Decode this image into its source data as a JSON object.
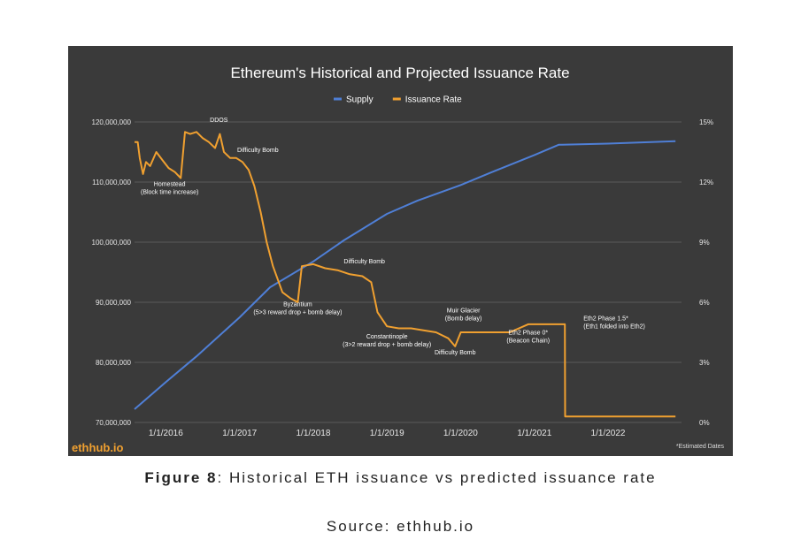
{
  "chart_data": {
    "type": "line",
    "title": "Ethereum's Historical and Projected Issuance Rate",
    "legend_position": "top-center",
    "grid": true,
    "x_range": [
      "2015-07-30",
      "2022-12-31"
    ],
    "x_ticks": [
      {
        "date": "2016-01-01",
        "label": "1/1/2016"
      },
      {
        "date": "2017-01-01",
        "label": "1/1/2017"
      },
      {
        "date": "2018-01-01",
        "label": "1/1/2018"
      },
      {
        "date": "2019-01-01",
        "label": "1/1/2019"
      },
      {
        "date": "2020-01-01",
        "label": "1/1/2020"
      },
      {
        "date": "2021-01-01",
        "label": "1/1/2021"
      },
      {
        "date": "2022-01-01",
        "label": "1/1/2022"
      }
    ],
    "y_left": {
      "range": [
        70000000,
        120000000
      ],
      "ticks": [
        {
          "value": 70000000,
          "label": "70,000,000"
        },
        {
          "value": 80000000,
          "label": "80,000,000"
        },
        {
          "value": 90000000,
          "label": "90,000,000"
        },
        {
          "value": 100000000,
          "label": "100,000,000"
        },
        {
          "value": 110000000,
          "label": "110,000,000"
        },
        {
          "value": 120000000,
          "label": "120,000,000"
        }
      ]
    },
    "y_right": {
      "range": [
        0,
        15
      ],
      "ticks": [
        {
          "value": 0,
          "label": "0%"
        },
        {
          "value": 3,
          "label": "3%"
        },
        {
          "value": 6,
          "label": "6%"
        },
        {
          "value": 9,
          "label": "9%"
        },
        {
          "value": 12,
          "label": "12%"
        },
        {
          "value": 15,
          "label": "15%"
        }
      ]
    },
    "series": [
      {
        "name": "Supply",
        "axis": "left",
        "color": "#4f7fd6",
        "points": [
          [
            "2015-07-30",
            72200000
          ],
          [
            "2016-01-01",
            76700000
          ],
          [
            "2016-06-01",
            81000000
          ],
          [
            "2017-01-01",
            87500000
          ],
          [
            "2017-06-01",
            92500000
          ],
          [
            "2018-01-01",
            96800000
          ],
          [
            "2018-06-01",
            100300000
          ],
          [
            "2019-01-01",
            104700000
          ],
          [
            "2019-06-01",
            106900000
          ],
          [
            "2020-01-01",
            109500000
          ],
          [
            "2020-06-01",
            111600000
          ],
          [
            "2021-01-01",
            114500000
          ],
          [
            "2021-05-01",
            116200000
          ],
          [
            "2022-01-01",
            116400000
          ],
          [
            "2022-12-01",
            116800000
          ]
        ]
      },
      {
        "name": "Issuance Rate",
        "axis": "right",
        "color": "#f0a030",
        "points": [
          [
            "2015-07-30",
            14.0
          ],
          [
            "2015-08-15",
            14.0
          ],
          [
            "2015-08-25",
            13.2
          ],
          [
            "2015-09-10",
            12.4
          ],
          [
            "2015-09-25",
            13.0
          ],
          [
            "2015-10-15",
            12.8
          ],
          [
            "2015-11-15",
            13.5
          ],
          [
            "2015-12-15",
            13.1
          ],
          [
            "2016-01-15",
            12.7
          ],
          [
            "2016-02-15",
            12.5
          ],
          [
            "2016-03-15",
            12.2
          ],
          [
            "2016-04-05",
            14.5
          ],
          [
            "2016-05-01",
            14.4
          ],
          [
            "2016-06-01",
            14.5
          ],
          [
            "2016-07-01",
            14.2
          ],
          [
            "2016-08-01",
            14.0
          ],
          [
            "2016-09-01",
            13.7
          ],
          [
            "2016-09-25",
            14.4
          ],
          [
            "2016-10-15",
            13.5
          ],
          [
            "2016-11-15",
            13.2
          ],
          [
            "2016-12-15",
            13.2
          ],
          [
            "2017-01-15",
            13.0
          ],
          [
            "2017-02-15",
            12.6
          ],
          [
            "2017-03-15",
            11.8
          ],
          [
            "2017-04-15",
            10.5
          ],
          [
            "2017-05-15",
            9.0
          ],
          [
            "2017-06-15",
            7.8
          ],
          [
            "2017-08-01",
            6.5
          ],
          [
            "2017-09-10",
            6.2
          ],
          [
            "2017-10-16",
            6.0
          ],
          [
            "2017-11-05",
            7.8
          ],
          [
            "2018-01-01",
            7.9
          ],
          [
            "2018-03-01",
            7.7
          ],
          [
            "2018-05-01",
            7.6
          ],
          [
            "2018-07-01",
            7.4
          ],
          [
            "2018-09-01",
            7.3
          ],
          [
            "2018-10-15",
            7.0
          ],
          [
            "2018-11-15",
            5.5
          ],
          [
            "2019-01-01",
            4.8
          ],
          [
            "2019-02-28",
            4.7
          ],
          [
            "2019-05-01",
            4.7
          ],
          [
            "2019-07-01",
            4.6
          ],
          [
            "2019-09-01",
            4.5
          ],
          [
            "2019-11-01",
            4.2
          ],
          [
            "2019-12-05",
            3.8
          ],
          [
            "2020-01-02",
            4.5
          ],
          [
            "2020-03-01",
            4.5
          ],
          [
            "2020-06-01",
            4.5
          ],
          [
            "2020-09-01",
            4.5
          ],
          [
            "2020-12-01",
            4.9
          ],
          [
            "2021-06-01",
            4.9
          ],
          [
            "2021-06-02",
            0.3
          ],
          [
            "2022-12-01",
            0.3
          ]
        ]
      }
    ],
    "annotations": [
      {
        "lines": [
          "DDOS"
        ],
        "date": "2016-09-20",
        "value": 15.0,
        "anchor": "middle"
      },
      {
        "lines": [
          "Difficulty Bomb"
        ],
        "date": "2016-12-20",
        "value": 13.5,
        "anchor": "start"
      },
      {
        "lines": [
          "Homestead",
          "(Block time increase)"
        ],
        "date": "2016-01-20",
        "value": 11.8,
        "anchor": "middle"
      },
      {
        "lines": [
          "Difficulty Bomb"
        ],
        "date": "2018-06-01",
        "value": 7.95,
        "anchor": "start"
      },
      {
        "lines": [
          "Byzantium",
          "(5>3 reward drop + bomb delay)"
        ],
        "date": "2017-10-16",
        "value": 5.8,
        "anchor": "middle"
      },
      {
        "lines": [
          "Muir Glacier",
          "(Bomb delay)"
        ],
        "date": "2020-01-15",
        "value": 5.5,
        "anchor": "middle"
      },
      {
        "lines": [
          "Constantinople",
          "(3>2 reward drop + bomb delay)"
        ],
        "date": "2019-01-01",
        "value": 4.2,
        "anchor": "middle"
      },
      {
        "lines": [
          "Difficulty Bomb"
        ],
        "date": "2019-12-05",
        "value": 3.4,
        "anchor": "middle"
      },
      {
        "lines": [
          "Eth2 Phase 0*",
          "(Beacon Chain)"
        ],
        "date": "2020-12-01",
        "value": 4.4,
        "anchor": "middle"
      },
      {
        "lines": [
          "Eth2 Phase 1.5*",
          "(Eth1 folded into Eth2)"
        ],
        "date": "2021-09-01",
        "value": 5.1,
        "anchor": "start"
      }
    ],
    "footnote": "*Estimated Dates",
    "watermark": "ethhub.io"
  },
  "caption": {
    "figure_label": "Figure 8",
    "figure_text": ": Historical ETH issuance vs predicted issuance rate",
    "source": "Source: ethhub.io"
  }
}
